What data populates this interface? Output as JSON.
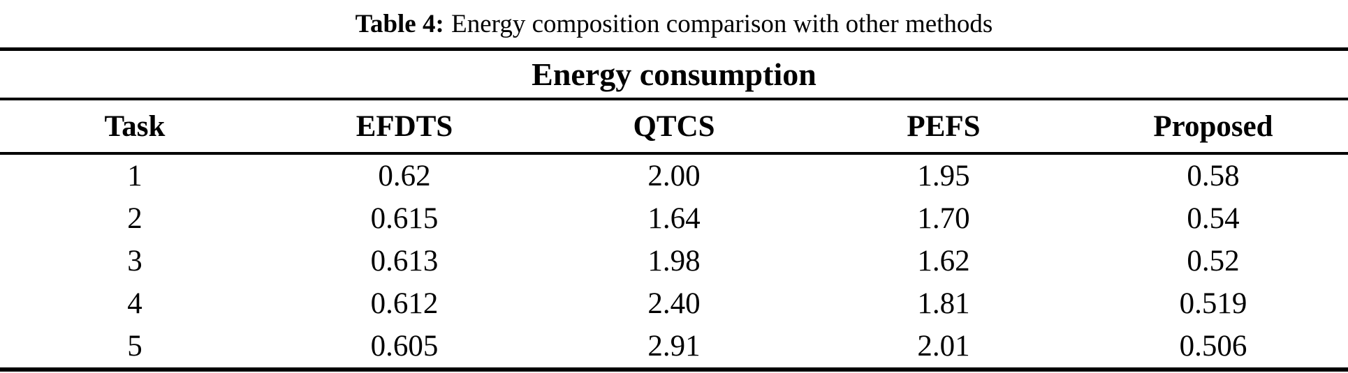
{
  "caption": {
    "label": "Table 4:",
    "text": "Energy composition comparison with other methods"
  },
  "table": {
    "group_header": "Energy consumption",
    "columns": [
      "Task",
      "EFDTS",
      "QTCS",
      "PEFS",
      "Proposed"
    ],
    "rows": [
      {
        "cells": [
          "1",
          "0.62",
          "2.00",
          "1.95",
          "0.58"
        ]
      },
      {
        "cells": [
          "2",
          "0.615",
          "1.64",
          "1.70",
          "0.54"
        ]
      },
      {
        "cells": [
          "3",
          "0.613",
          "1.98",
          "1.62",
          "0.52"
        ]
      },
      {
        "cells": [
          "4",
          "0.612",
          "2.40",
          "1.81",
          "0.519"
        ]
      },
      {
        "cells": [
          "5",
          "0.605",
          "2.91",
          "2.01",
          "0.506"
        ]
      }
    ]
  },
  "chart_data": {
    "type": "table",
    "title": "Table 4: Energy composition comparison with other methods",
    "group_header": "Energy consumption",
    "columns": [
      "Task",
      "EFDTS",
      "QTCS",
      "PEFS",
      "Proposed"
    ],
    "rows": [
      [
        1,
        0.62,
        2.0,
        1.95,
        0.58
      ],
      [
        2,
        0.615,
        1.64,
        1.7,
        0.54
      ],
      [
        3,
        0.613,
        1.98,
        1.62,
        0.52
      ],
      [
        4,
        0.612,
        2.4,
        1.81,
        0.519
      ],
      [
        5,
        0.605,
        2.91,
        2.01,
        0.506
      ]
    ]
  },
  "colors": {
    "text": "#000000",
    "background": "#ffffff",
    "rule": "#000000"
  }
}
